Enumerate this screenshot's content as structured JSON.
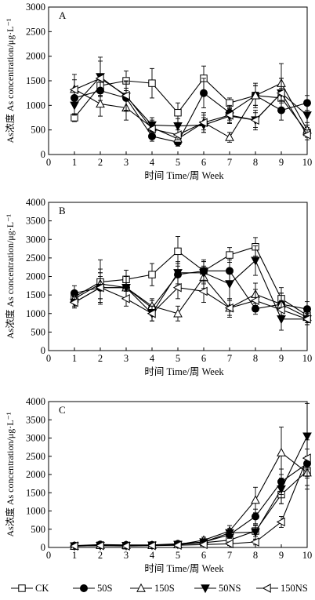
{
  "chart_data": [
    {
      "type": "line",
      "panel_label": "A",
      "xlabel": "时间 Time/周 Week",
      "ylabel": "As浓度 As concentration/μg·L⁻¹",
      "xlim": [
        0,
        10
      ],
      "ylim": [
        0,
        3000
      ],
      "x_ticks": [
        0,
        1,
        2,
        3,
        4,
        5,
        6,
        7,
        8,
        9,
        10
      ],
      "y_ticks": [
        0,
        500,
        1000,
        1500,
        2000,
        2500,
        3000
      ],
      "x": [
        1,
        2,
        3,
        4,
        5,
        6,
        7,
        8,
        9,
        10
      ],
      "series": [
        {
          "name": "CK",
          "marker": "square-open",
          "values": [
            750,
            1400,
            1500,
            1450,
            850,
            1550,
            1050,
            1200,
            1150,
            450
          ],
          "errors": [
            80,
            200,
            200,
            300,
            200,
            250,
            100,
            200,
            200,
            100
          ]
        },
        {
          "name": "50S",
          "marker": "circle-filled",
          "values": [
            1150,
            1300,
            1150,
            370,
            250,
            1250,
            850,
            1200,
            900,
            1050
          ],
          "errors": [
            150,
            200,
            200,
            100,
            80,
            300,
            150,
            200,
            200,
            150
          ]
        },
        {
          "name": "150S",
          "marker": "triangle-up-open",
          "values": [
            1330,
            1030,
            950,
            550,
            320,
            650,
            350,
            1200,
            1450,
            500
          ],
          "errors": [
            300,
            250,
            250,
            150,
            100,
            200,
            100,
            250,
            400,
            150
          ]
        },
        {
          "name": "50NS",
          "marker": "triangle-down-filled",
          "values": [
            1000,
            1580,
            1180,
            600,
            580,
            600,
            780,
            700,
            1250,
            800
          ],
          "errors": [
            200,
            400,
            300,
            150,
            150,
            150,
            150,
            200,
            300,
            200
          ]
        },
        {
          "name": "150NS",
          "marker": "triangle-left-open",
          "values": [
            1320,
            1550,
            1200,
            520,
            400,
            650,
            800,
            700,
            1250,
            400
          ],
          "errors": [
            200,
            350,
            300,
            150,
            100,
            150,
            150,
            150,
            300,
            100
          ]
        }
      ]
    },
    {
      "type": "line",
      "panel_label": "B",
      "xlabel": "时间 Time/周 Week",
      "ylabel": "As浓度 As concentration/μg·L⁻¹",
      "xlim": [
        0,
        10
      ],
      "ylim": [
        0,
        4000
      ],
      "x_ticks": [
        0,
        1,
        2,
        3,
        4,
        5,
        6,
        7,
        8,
        9,
        10
      ],
      "y_ticks": [
        0,
        500,
        1000,
        1500,
        2000,
        2500,
        3000,
        3500,
        4000
      ],
      "x": [
        1,
        2,
        3,
        4,
        5,
        6,
        7,
        8,
        9,
        10
      ],
      "series": [
        {
          "name": "CK",
          "marker": "square-open",
          "values": [
            1450,
            1850,
            1920,
            2050,
            2680,
            2150,
            2580,
            2800,
            1400,
            950
          ],
          "errors": [
            150,
            600,
            250,
            300,
            400,
            250,
            200,
            250,
            300,
            200
          ]
        },
        {
          "name": "50S",
          "marker": "circle-filled",
          "values": [
            1550,
            1700,
            1700,
            1150,
            2050,
            2150,
            2150,
            1130,
            1250,
            1120
          ],
          "errors": [
            200,
            300,
            300,
            200,
            300,
            300,
            300,
            150,
            300,
            200
          ]
        },
        {
          "name": "150S",
          "marker": "triangle-up-open",
          "values": [
            1400,
            1800,
            1700,
            1200,
            1000,
            1980,
            1150,
            1520,
            1250,
            900
          ],
          "errors": [
            200,
            400,
            300,
            200,
            200,
            300,
            200,
            300,
            300,
            200
          ]
        },
        {
          "name": "50NS",
          "marker": "triangle-down-filled",
          "values": [
            1300,
            1700,
            1700,
            1000,
            2100,
            2100,
            1800,
            2430,
            850,
            850
          ],
          "errors": [
            150,
            400,
            300,
            200,
            300,
            300,
            400,
            400,
            300,
            150
          ]
        },
        {
          "name": "150NS",
          "marker": "triangle-left-open",
          "values": [
            1300,
            1700,
            1400,
            1000,
            1700,
            1600,
            1150,
            1350,
            1100,
            850
          ],
          "errors": [
            150,
            400,
            200,
            200,
            300,
            300,
            250,
            300,
            250,
            150
          ]
        }
      ]
    },
    {
      "type": "line",
      "panel_label": "C",
      "xlabel": "时间 Time/周 Week",
      "ylabel": "As浓度 As concentration/μg·L⁻¹",
      "xlim": [
        0,
        10
      ],
      "ylim": [
        0,
        4000
      ],
      "x_ticks": [
        0,
        1,
        2,
        3,
        4,
        5,
        6,
        7,
        8,
        9,
        10
      ],
      "y_ticks": [
        0,
        500,
        1000,
        1500,
        2000,
        2500,
        3000,
        3500,
        4000
      ],
      "x": [
        1,
        2,
        3,
        4,
        5,
        6,
        7,
        8,
        9,
        10
      ],
      "series": [
        {
          "name": "CK",
          "marker": "square-open",
          "values": [
            40,
            60,
            50,
            60,
            80,
            130,
            200,
            450,
            1450,
            2100
          ],
          "errors": [
            20,
            20,
            20,
            20,
            30,
            50,
            80,
            150,
            250,
            400
          ]
        },
        {
          "name": "50S",
          "marker": "circle-filled",
          "values": [
            50,
            80,
            70,
            70,
            100,
            150,
            350,
            850,
            1800,
            2300
          ],
          "errors": [
            20,
            30,
            20,
            20,
            30,
            50,
            100,
            200,
            350,
            400
          ]
        },
        {
          "name": "150S",
          "marker": "triangle-up-open",
          "values": [
            40,
            60,
            60,
            60,
            80,
            200,
            450,
            1300,
            2600,
            2050
          ],
          "errors": [
            20,
            20,
            20,
            20,
            30,
            80,
            150,
            350,
            700,
            450
          ]
        },
        {
          "name": "50NS",
          "marker": "triangle-down-filled",
          "values": [
            40,
            50,
            50,
            60,
            80,
            150,
            400,
            420,
            1600,
            3050
          ],
          "errors": [
            20,
            20,
            20,
            20,
            30,
            50,
            120,
            200,
            400,
            900
          ]
        },
        {
          "name": "150NS",
          "marker": "triangle-left-open",
          "values": [
            40,
            50,
            40,
            50,
            60,
            80,
            100,
            150,
            700,
            2450
          ],
          "errors": [
            20,
            20,
            20,
            20,
            20,
            30,
            50,
            80,
            150,
            500
          ]
        }
      ]
    }
  ],
  "legend": [
    {
      "label": "CK",
      "marker": "square-open"
    },
    {
      "label": "50S",
      "marker": "circle-filled"
    },
    {
      "label": "150S",
      "marker": "triangle-up-open"
    },
    {
      "label": "50NS",
      "marker": "triangle-down-filled"
    },
    {
      "label": "150NS",
      "marker": "triangle-left-open"
    }
  ]
}
